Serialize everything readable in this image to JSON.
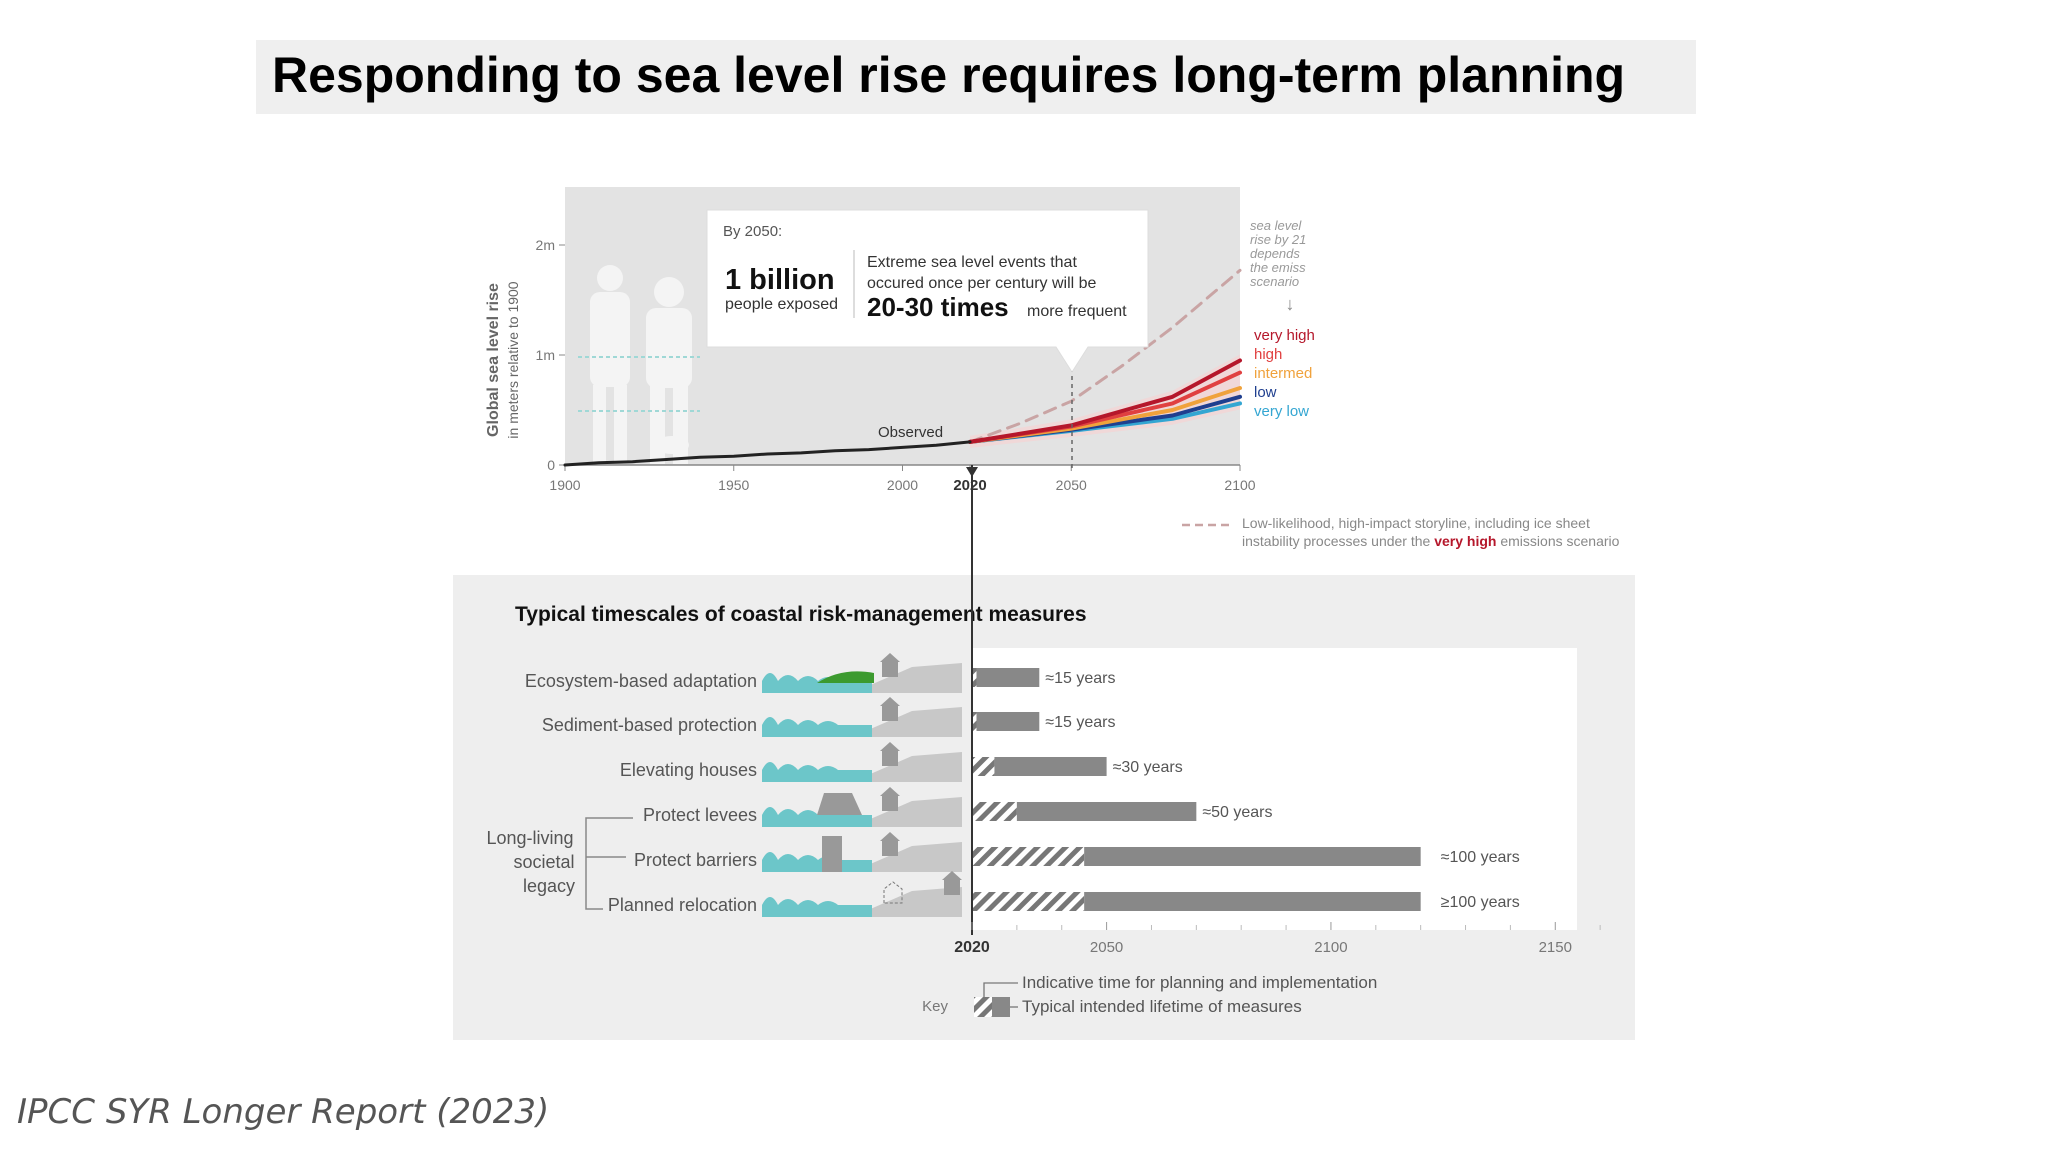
{
  "slide_title": "Responding to sea level rise requires long-term planning",
  "citation": "IPCC SYR Longer Report (2023)",
  "colors": {
    "observed": "#222222",
    "very_high": "#b5172b",
    "high": "#e04040",
    "intermediate": "#f0a23c",
    "low": "#1f3f8f",
    "very_low": "#34a6d2",
    "storyline": "#c9a4a4",
    "teal": "#6cc6c9",
    "green": "#3c9a2f",
    "bar": "#888888"
  },
  "callout": {
    "by_year": "By 2050:",
    "exposed_value": "1 billion",
    "exposed_text": "people exposed",
    "events_text_1": "Extreme sea level events that",
    "events_text_2": "occured once per century will be",
    "frequency_value": "20-30 times",
    "frequency_text": "more frequent"
  },
  "scenario_note": [
    "sea level",
    "rise by 21",
    "depends",
    "the emiss",
    "scenario"
  ],
  "storyline_legend": {
    "line1": "Low-likelihood, high-impact storyline, including ice sheet",
    "line2_pre": "instability processes under the",
    "line2_emph": "very high",
    "line2_post": "emissions scenario"
  },
  "timescales": {
    "title": "Typical timescales of coastal risk-management measures",
    "group_label": [
      "Long-living",
      "societal",
      "legacy"
    ],
    "x_ticks": [
      "2020",
      "2050",
      "2100",
      "2150"
    ],
    "key_label": "Key",
    "key_planning": "Indicative time for planning and implementation",
    "key_lifetime": "Typical intended lifetime of measures"
  },
  "chart_data": [
    {
      "type": "line",
      "title": "",
      "ylabel": "Global sea level rise",
      "ylabel_sub": "in meters relative to 1900",
      "xlim": [
        1900,
        2100
      ],
      "ylim": [
        0,
        2
      ],
      "x_ticks": [
        "1900",
        "1950",
        "2000",
        "2020",
        "2050",
        "2100"
      ],
      "y_ticks": [
        "0",
        "1m",
        "2m"
      ],
      "series": [
        {
          "name": "Observed",
          "x": [
            1900,
            1910,
            1920,
            1930,
            1940,
            1950,
            1960,
            1970,
            1980,
            1990,
            2000,
            2010,
            2020
          ],
          "values": [
            0.0,
            0.02,
            0.03,
            0.05,
            0.07,
            0.08,
            0.1,
            0.11,
            0.13,
            0.14,
            0.16,
            0.18,
            0.21
          ]
        },
        {
          "name": "very high",
          "x": [
            2020,
            2050,
            2080,
            2100
          ],
          "values": [
            0.21,
            0.36,
            0.62,
            0.95
          ]
        },
        {
          "name": "high",
          "x": [
            2020,
            2050,
            2080,
            2100
          ],
          "values": [
            0.21,
            0.35,
            0.56,
            0.84
          ]
        },
        {
          "name": "intermed",
          "x": [
            2020,
            2050,
            2080,
            2100
          ],
          "values": [
            0.21,
            0.33,
            0.5,
            0.7
          ]
        },
        {
          "name": "low",
          "x": [
            2020,
            2050,
            2080,
            2100
          ],
          "values": [
            0.21,
            0.32,
            0.45,
            0.62
          ]
        },
        {
          "name": "very low",
          "x": [
            2020,
            2050,
            2080,
            2100
          ],
          "values": [
            0.21,
            0.31,
            0.42,
            0.56
          ]
        },
        {
          "name": "Low-likelihood, high-impact storyline",
          "x": [
            2020,
            2035,
            2050,
            2065,
            2080,
            2100
          ],
          "values": [
            0.21,
            0.38,
            0.58,
            0.9,
            1.25,
            1.77
          ]
        }
      ],
      "annotations": [
        "Observed",
        "2050"
      ]
    },
    {
      "type": "bar",
      "title": "Typical timescales of coastal risk-management measures",
      "xlim": [
        2020,
        2170
      ],
      "x_ticks": [
        2020,
        2050,
        2100,
        2150
      ],
      "categories": [
        "Ecosystem-based adaptation",
        "Sediment-based protection",
        "Elevating houses",
        "Protect levees",
        "Protect barriers",
        "Planned relocation"
      ],
      "series": [
        {
          "name": "Indicative time for planning and implementation",
          "values": [
            1,
            1,
            5,
            10,
            25,
            25
          ]
        },
        {
          "name": "Typical intended lifetime of measures",
          "values": [
            15,
            15,
            30,
            50,
            100,
            100
          ]
        }
      ],
      "labels": [
        "≈15 years",
        "≈15 years",
        "≈30 years",
        "≈50 years",
        "≈100 years",
        "≥100 years"
      ]
    }
  ]
}
